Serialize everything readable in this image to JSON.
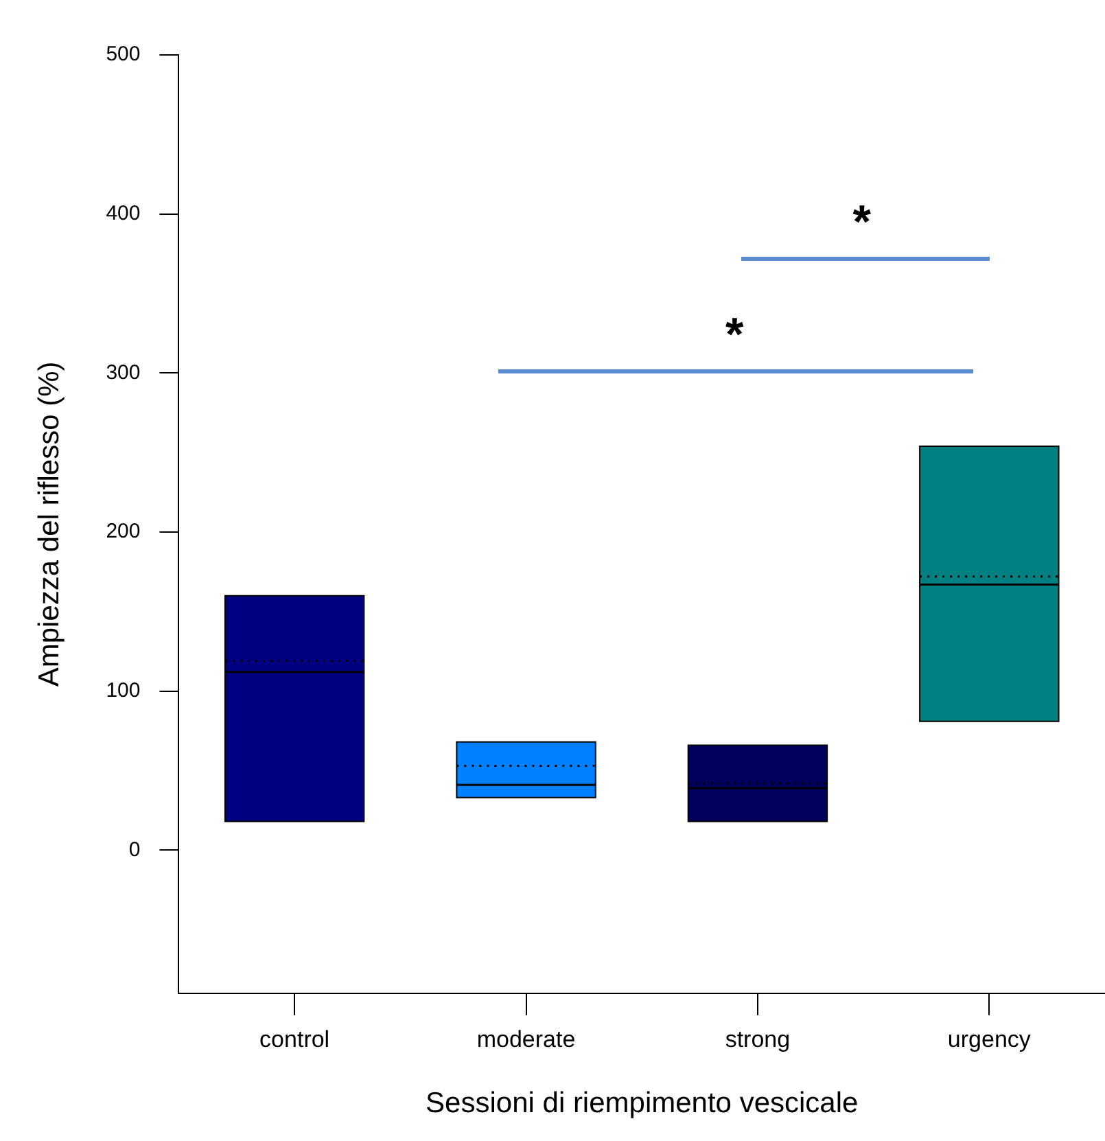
{
  "chart_data": {
    "type": "box",
    "xlabel": "Sessioni di riempimento vescicale",
    "ylabel": "Ampiezza del riflesso (%)",
    "categories": [
      "control",
      "moderate",
      "strong",
      "urgency"
    ],
    "colors": [
      "#000080",
      "#0080ff",
      "#00005c",
      "#008080"
    ],
    "boxes": [
      {
        "low": 18,
        "q1": 18,
        "median": 112,
        "q3": 160,
        "high": 160,
        "mean": 119
      },
      {
        "low": 33,
        "q1": 33,
        "median": 41,
        "q3": 68,
        "high": 68,
        "mean": 53
      },
      {
        "low": 18,
        "q1": 18,
        "median": 39,
        "q3": 66,
        "high": 66,
        "mean": 42
      },
      {
        "low": 81,
        "q1": 81,
        "median": 167,
        "q3": 254,
        "high": 254,
        "mean": 172
      }
    ],
    "ylim": [
      -90,
      500
    ],
    "yticks": [
      0,
      100,
      200,
      300,
      400,
      500
    ],
    "grid": false,
    "legend": false,
    "annotations": [
      "*",
      "*"
    ]
  }
}
